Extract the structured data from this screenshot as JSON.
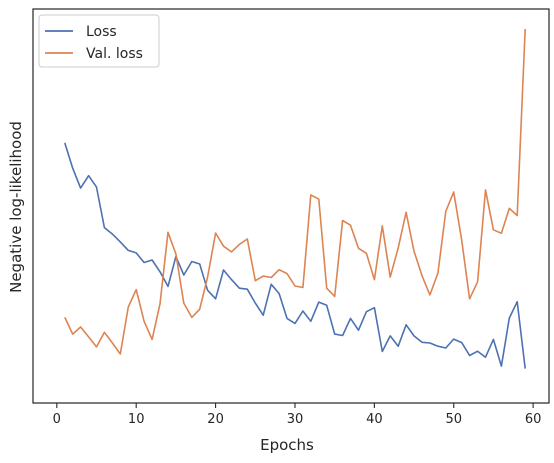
{
  "chart_data": {
    "type": "line",
    "title": "",
    "xlabel": "Epochs",
    "ylabel": "Negative log-likelihood",
    "xlim": [
      -3,
      62
    ],
    "ylim": [
      0,
      1
    ],
    "xticks": [
      0,
      10,
      20,
      30,
      40,
      50,
      60
    ],
    "legend_position": "top-left",
    "grid": false,
    "series": [
      {
        "name": "Loss",
        "color": "#4c72b0",
        "x": [
          1,
          2,
          3,
          4,
          5,
          6,
          7,
          8,
          9,
          10,
          11,
          12,
          13,
          14,
          15,
          16,
          17,
          18,
          19,
          20,
          21,
          22,
          23,
          24,
          25,
          26,
          27,
          28,
          29,
          30,
          31,
          32,
          33,
          34,
          35,
          36,
          37,
          38,
          39,
          40,
          41,
          42,
          43,
          44,
          45,
          46,
          47,
          48,
          49,
          50,
          51,
          52,
          53,
          54,
          55,
          56,
          57,
          58,
          59
        ],
        "y": [
          0.68,
          0.609,
          0.553,
          0.588,
          0.556,
          0.442,
          0.424,
          0.402,
          0.378,
          0.371,
          0.344,
          0.351,
          0.318,
          0.277,
          0.361,
          0.309,
          0.347,
          0.34,
          0.266,
          0.242,
          0.323,
          0.296,
          0.272,
          0.269,
          0.23,
          0.196,
          0.283,
          0.257,
          0.187,
          0.173,
          0.208,
          0.179,
          0.233,
          0.224,
          0.143,
          0.139,
          0.187,
          0.154,
          0.206,
          0.217,
          0.094,
          0.138,
          0.109,
          0.169,
          0.138,
          0.12,
          0.118,
          0.109,
          0.104,
          0.129,
          0.119,
          0.083,
          0.095,
          0.078,
          0.128,
          0.053,
          0.188,
          0.234,
          0.046
        ]
      },
      {
        "name": "Val. loss",
        "color": "#dd8452",
        "x": [
          1,
          2,
          3,
          4,
          5,
          6,
          7,
          8,
          9,
          10,
          11,
          12,
          13,
          14,
          15,
          16,
          17,
          18,
          19,
          20,
          21,
          22,
          23,
          24,
          25,
          26,
          27,
          28,
          29,
          30,
          31,
          32,
          33,
          34,
          35,
          36,
          37,
          38,
          39,
          40,
          41,
          42,
          43,
          44,
          45,
          46,
          47,
          48,
          49,
          50,
          51,
          52,
          53,
          54,
          55,
          56,
          57,
          58,
          59
        ],
        "y": [
          0.19,
          0.143,
          0.163,
          0.135,
          0.107,
          0.148,
          0.118,
          0.087,
          0.219,
          0.268,
          0.179,
          0.128,
          0.228,
          0.429,
          0.368,
          0.23,
          0.19,
          0.213,
          0.303,
          0.427,
          0.39,
          0.374,
          0.395,
          0.41,
          0.293,
          0.306,
          0.302,
          0.324,
          0.313,
          0.278,
          0.274,
          0.534,
          0.522,
          0.272,
          0.249,
          0.462,
          0.449,
          0.384,
          0.37,
          0.296,
          0.447,
          0.303,
          0.385,
          0.485,
          0.376,
          0.307,
          0.253,
          0.314,
          0.488,
          0.542,
          0.407,
          0.242,
          0.29,
          0.548,
          0.436,
          0.426,
          0.496,
          0.476,
          1.0
        ]
      }
    ]
  }
}
